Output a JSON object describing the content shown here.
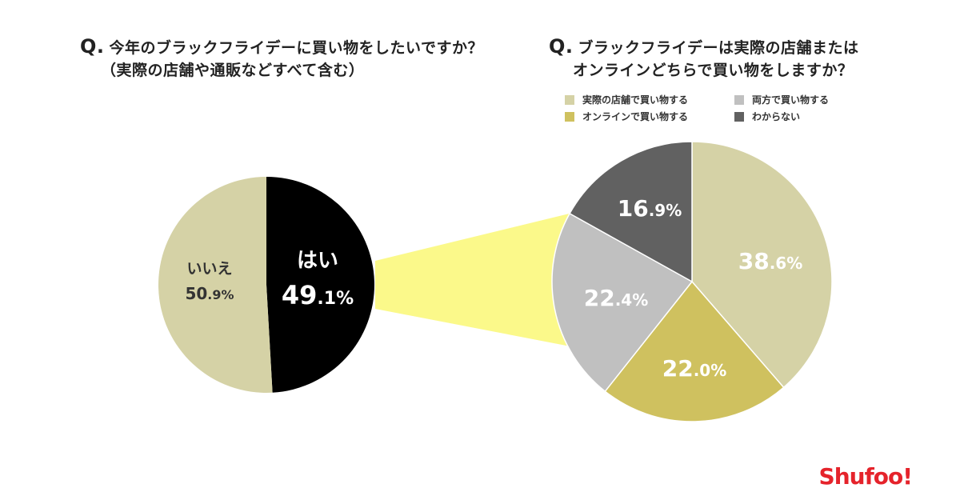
{
  "questions": {
    "left": {
      "mark": "Q.",
      "line1": "今年のブラックフライデーに買い物をしたいですか？",
      "line2": "（実際の店舗や通販などすべて含む）"
    },
    "right": {
      "mark": "Q.",
      "line1": "ブラックフライデーは実際の店舗または",
      "line2": "オンラインどちらで買い物をしますか？"
    }
  },
  "colors": {
    "khaki": "#d5d2a6",
    "black": "#000000",
    "olive": "#cfc15f",
    "lightgray": "#c0c0c0",
    "darkgray": "#616161",
    "highlight": "#fbf98a",
    "logo_red": "#e5232b"
  },
  "chart_data": [
    {
      "type": "pie",
      "slices": [
        {
          "label": "はい",
          "value": 49.1,
          "display_int": "49",
          "display_dec": ".1%",
          "color": "#000000"
        },
        {
          "label": "いいえ",
          "value": 50.9,
          "display_int": "50",
          "display_dec": ".9%",
          "color": "#d5d2a6"
        }
      ]
    },
    {
      "type": "pie",
      "legend": [
        {
          "label": "実際の店舗で買い物する",
          "color": "#d5d2a6"
        },
        {
          "label": "両方で買い物する",
          "color": "#c0c0c0"
        },
        {
          "label": "オンラインで買い物する",
          "color": "#cfc15f"
        },
        {
          "label": "わからない",
          "color": "#616161"
        }
      ],
      "slices": [
        {
          "label": "実際の店舗で買い物する",
          "value": 38.6,
          "display_int": "38",
          "display_dec": ".6%",
          "color": "#d5d2a6"
        },
        {
          "label": "オンラインで買い物する",
          "value": 22.0,
          "display_int": "22",
          "display_dec": ".0%",
          "color": "#cfc15f"
        },
        {
          "label": "両方で買い物する",
          "value": 22.4,
          "display_int": "22",
          "display_dec": ".4%",
          "color": "#c0c0c0"
        },
        {
          "label": "わからない",
          "value": 16.9,
          "display_int": "16",
          "display_dec": ".9%",
          "color": "#616161"
        }
      ]
    }
  ],
  "logo": {
    "text": "Shufoo!"
  }
}
